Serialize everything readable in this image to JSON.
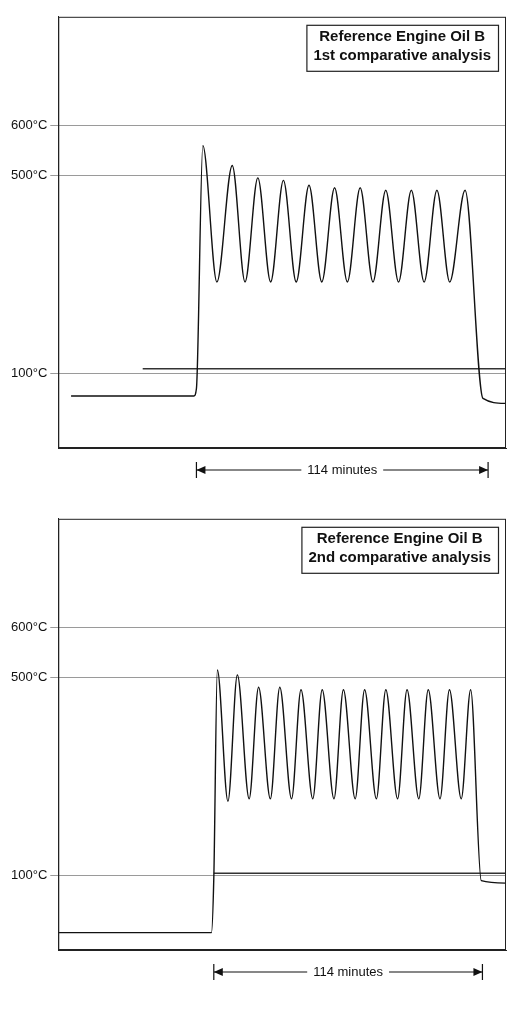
{
  "chart_data": [
    {
      "type": "line",
      "title": "Reference Engine Oil B",
      "subtitle": "1st comparative analysis",
      "xlim": [
        0,
        175
      ],
      "ylim": [
        -50,
        820
      ],
      "yticks": [
        {
          "value": 100,
          "label": "100°C"
        },
        {
          "value": 500,
          "label": "500°C"
        },
        {
          "value": 600,
          "label": "600°C"
        }
      ],
      "grid": true,
      "tick_labels": "y",
      "series": [
        {
          "color": "#111111",
          "x": [
            5,
            53,
            54,
            56.5,
            62,
            68,
            73,
            78,
            83,
            88,
            93,
            98,
            103,
            108,
            113,
            118,
            123,
            128,
            133,
            138,
            143,
            148,
            153,
            159,
            166,
            175
          ],
          "values": [
            55,
            55,
            70,
            560,
            285,
            520,
            285,
            495,
            285,
            490,
            285,
            480,
            285,
            475,
            285,
            475,
            285,
            470,
            285,
            470,
            285,
            470,
            285,
            470,
            50,
            40
          ]
        },
        {
          "color": "#333333",
          "x": [
            33,
            175
          ],
          "values": [
            110,
            110
          ]
        }
      ],
      "annotations": [
        {
          "text": "114 minutes",
          "x": [
            54,
            168
          ]
        }
      ]
    },
    {
      "type": "line",
      "title": "Reference Engine Oil B",
      "subtitle": "2nd comparative analysis",
      "xlim": [
        0,
        190
      ],
      "ylim": [
        -50,
        820
      ],
      "yticks": [
        {
          "value": 100,
          "label": "100°C"
        },
        {
          "value": 500,
          "label": "500°C"
        },
        {
          "value": 600,
          "label": "600°C"
        }
      ],
      "grid": true,
      "tick_labels": "y",
      "series": [
        {
          "color": "#111111",
          "x": [
            0,
            65,
            66,
            67.5,
            72,
            76,
            81,
            85,
            90,
            94,
            99,
            103,
            108,
            112,
            117,
            121,
            126,
            130,
            135,
            139,
            144,
            148,
            153,
            157,
            162,
            166,
            171,
            175,
            179.5,
            190
          ],
          "values": [
            -15,
            -15,
            95,
            515,
            250,
            505,
            255,
            480,
            255,
            480,
            255,
            475,
            255,
            475,
            255,
            475,
            255,
            475,
            255,
            475,
            255,
            475,
            255,
            475,
            255,
            475,
            255,
            475,
            90,
            85
          ]
        },
        {
          "color": "#333333",
          "x": [
            66,
            190
          ],
          "values": [
            105,
            105
          ]
        }
      ],
      "annotations": [
        {
          "text": "114 minutes",
          "x": [
            66,
            180
          ]
        }
      ]
    }
  ]
}
